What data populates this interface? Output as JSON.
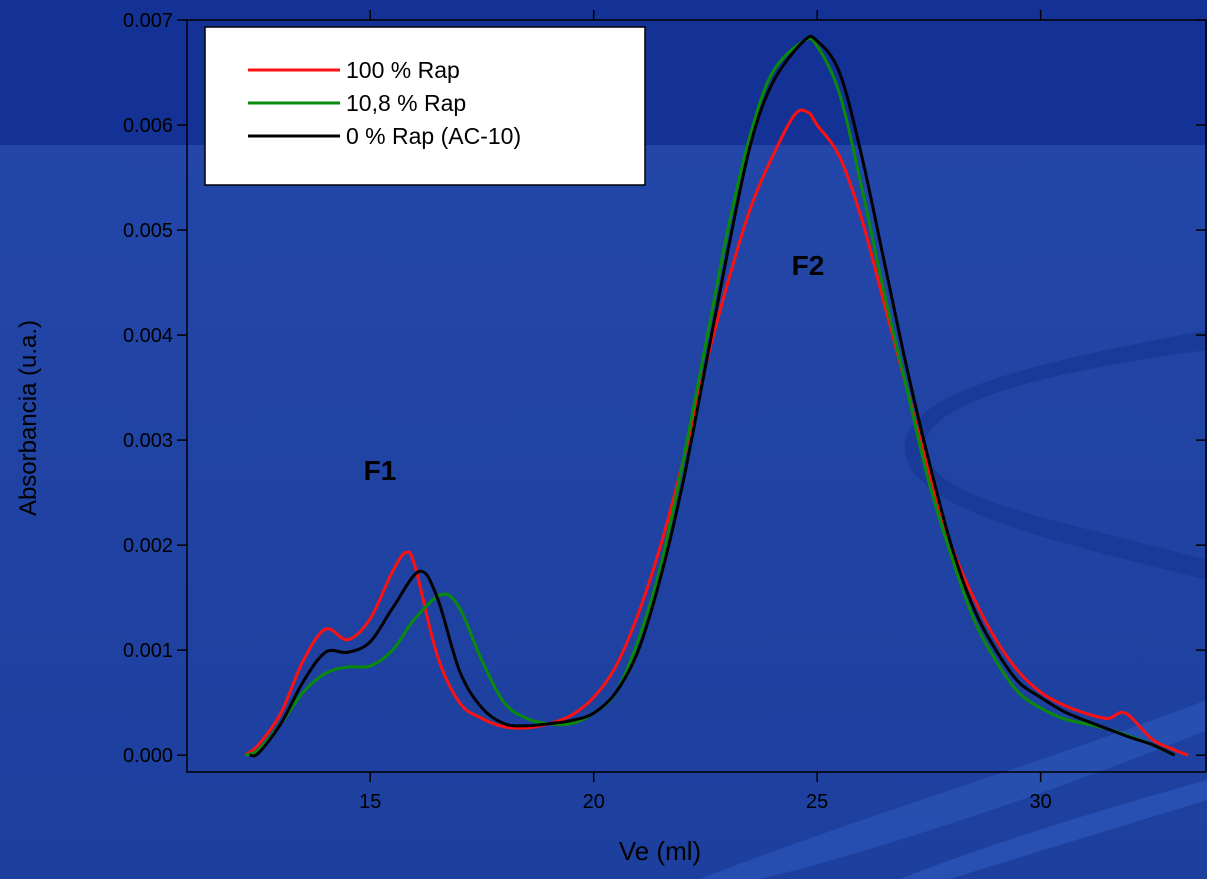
{
  "chart_data": {
    "type": "line",
    "xlabel": "Ve (ml)",
    "ylabel": "Absorbancia (u.a.)",
    "xlim": [
      10.9,
      33.7
    ],
    "ylim": [
      -0.00016,
      0.007
    ],
    "xticks": [
      15,
      20,
      25,
      30
    ],
    "yticks": [
      {
        "value": 0,
        "label": "0.000"
      },
      0.001,
      0.002,
      0.003,
      0.004,
      0.005,
      0.006,
      0.007
    ],
    "legend": "upper left",
    "annotations": [
      "F1",
      "F2"
    ],
    "series": [
      {
        "name": "100 % Rap",
        "color": "#ff1010",
        "x": [
          12.2,
          12.5,
          13,
          13.5,
          14,
          14.5,
          15,
          15.5,
          15.8,
          16,
          16.5,
          17,
          17.5,
          18,
          18.5,
          19,
          19.5,
          20,
          20.5,
          21,
          21.5,
          22,
          22.5,
          23,
          23.5,
          24,
          24.5,
          24.8,
          25,
          25.5,
          26,
          26.5,
          27,
          27.5,
          28,
          28.5,
          29,
          29.5,
          30,
          30.5,
          31,
          31.5,
          31.9,
          32.5,
          33,
          33.3
        ],
        "values": [
          0,
          0.0001,
          0.0004,
          0.0009,
          0.0012,
          0.0011,
          0.0013,
          0.00175,
          0.00193,
          0.0018,
          0.00095,
          0.0005,
          0.00035,
          0.00027,
          0.00026,
          0.0003,
          0.00038,
          0.00055,
          0.00085,
          0.00135,
          0.002,
          0.0028,
          0.0037,
          0.0045,
          0.0052,
          0.0057,
          0.0061,
          0.00612,
          0.006,
          0.0057,
          0.0051,
          0.0043,
          0.0035,
          0.0027,
          0.002,
          0.0015,
          0.0011,
          0.0008,
          0.0006,
          0.00048,
          0.0004,
          0.00035,
          0.0004,
          0.00015,
          5e-05,
          0
        ]
      },
      {
        "name": "10,8 % Rap",
        "color": "#0a8a0a",
        "x": [
          12.2,
          12.5,
          13,
          13.5,
          14,
          14.5,
          15,
          15.5,
          16,
          16.6,
          17,
          17.5,
          18,
          18.5,
          19,
          19.5,
          20,
          20.5,
          21,
          21.5,
          22,
          22.5,
          23,
          23.5,
          24,
          24.7,
          25,
          25.5,
          26,
          26.5,
          27,
          27.5,
          28,
          28.5,
          29,
          29.5,
          30,
          30.5,
          31,
          31.5,
          32,
          32.5,
          33
        ],
        "values": [
          0,
          5e-05,
          0.0003,
          0.0006,
          0.00078,
          0.00084,
          0.00085,
          0.001,
          0.0013,
          0.00153,
          0.0014,
          0.0009,
          0.0005,
          0.00035,
          0.0003,
          0.0003,
          0.0004,
          0.0006,
          0.0011,
          0.0018,
          0.0028,
          0.0039,
          0.005,
          0.0059,
          0.0065,
          0.0068,
          0.00675,
          0.0063,
          0.0054,
          0.0044,
          0.0035,
          0.0026,
          0.0019,
          0.0013,
          0.0009,
          0.0006,
          0.00045,
          0.00035,
          0.0003,
          0.00025,
          0.00018,
          0.0001,
          0
        ]
      },
      {
        "name": "0 % Rap (AC-10)",
        "color": "#000000",
        "x": [
          12.3,
          12.5,
          13,
          13.5,
          14,
          14.5,
          15,
          15.5,
          16.1,
          16.5,
          17,
          17.5,
          18,
          18.5,
          19,
          19.5,
          20,
          20.5,
          21,
          21.5,
          22,
          22.5,
          23,
          23.5,
          24,
          24.7,
          25,
          25.5,
          26,
          26.5,
          27,
          27.5,
          28,
          28.5,
          29,
          29.5,
          30,
          30.5,
          31,
          31.5,
          32,
          32.5,
          33
        ],
        "values": [
          0,
          2e-05,
          0.0003,
          0.0007,
          0.00098,
          0.00098,
          0.00108,
          0.0014,
          0.00175,
          0.0015,
          0.0008,
          0.00045,
          0.0003,
          0.00028,
          0.0003,
          0.00033,
          0.0004,
          0.0006,
          0.001,
          0.0017,
          0.0026,
          0.0037,
          0.0048,
          0.0058,
          0.0064,
          0.0068,
          0.0068,
          0.0065,
          0.0057,
          0.0047,
          0.0037,
          0.0028,
          0.002,
          0.0014,
          0.001,
          0.0007,
          0.00055,
          0.00042,
          0.00033,
          0.00025,
          0.00017,
          0.0001,
          0
        ]
      }
    ]
  }
}
